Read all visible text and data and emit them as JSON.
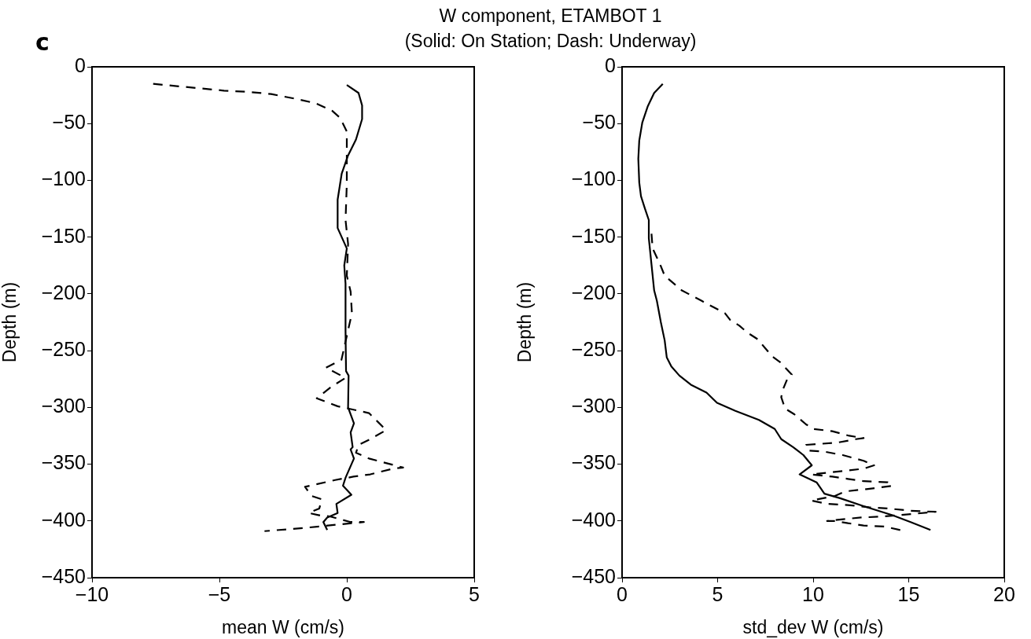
{
  "chart_data": [
    {
      "type": "line",
      "title": "W component, ETAMBOT 1",
      "subtitle": "(Solid: On Station; Dash: Underway)",
      "annotations": [
        "c"
      ],
      "xlabel": "mean W (cm/s)",
      "ylabel": "Depth (m)",
      "xlim": [
        -10,
        5
      ],
      "xticks": [
        -10,
        -5,
        0,
        5
      ],
      "ylim": [
        -450,
        0
      ],
      "yticks": [
        -450,
        -400,
        -350,
        -300,
        -250,
        -200,
        -150,
        -100,
        -50,
        0
      ],
      "grid": false,
      "legend": false,
      "marker": "none",
      "series": [
        {
          "color": "#000000",
          "line_style": "solid",
          "x": [
            0,
            0.46,
            0.6,
            0.6,
            0.36,
            0.05,
            -0.2,
            -0.36,
            -0.36,
            0,
            -0.1,
            -0.05,
            -0.05,
            -0.03,
            0.07,
            0.05,
            0.28,
            0.15,
            0.23,
            0.15,
            0.28,
            -0.05,
            -0.15,
            0.18,
            -0.41,
            -0.36,
            -0.77,
            -0.92,
            -0.77
          ],
          "values": [
            -16,
            -23,
            -34,
            -46,
            -64,
            -78,
            -94,
            -117,
            -142,
            -160,
            -175,
            -191,
            -233,
            -268,
            -272,
            -300,
            -314,
            -322,
            -335,
            -337,
            -345,
            -362,
            -369,
            -377,
            -385,
            -393,
            -397,
            -401,
            -408
          ]
        },
        {
          "color": "#000000",
          "line_style": "dashed",
          "x": [
            -7.6,
            -6.67,
            -5.74,
            -4.82,
            -3.9,
            -2.97,
            -2.05,
            -1.23,
            -0.56,
            -0.26,
            0,
            0,
            0,
            -0.05,
            0.05,
            0,
            0.15,
            0.2,
            -0.21,
            -0.82,
            -0.05,
            -0.62,
            -1.18,
            -0.82,
            -0.36,
            0.05,
            0.87,
            1.23,
            1.54,
            0.92,
            0.46,
            0.36,
            0.87,
            2.21,
            1.8,
            0.92,
            0.26,
            -0.46,
            -1.64,
            -1.39,
            -0.98,
            -1.08,
            -1.49,
            -1.08,
            -0.67,
            0.15,
            0.67,
            -0.26,
            -1.59,
            -3.23
          ],
          "values": [
            -15,
            -17,
            -19,
            -21,
            -22,
            -24,
            -28,
            -32,
            -39,
            -45,
            -57,
            -80,
            -103,
            -135,
            -156,
            -184,
            -198,
            -217,
            -258,
            -265,
            -274,
            -282,
            -292,
            -295,
            -299,
            -301,
            -305,
            -313,
            -320,
            -328,
            -333,
            -340,
            -345,
            -353,
            -354,
            -359,
            -361,
            -364,
            -370,
            -378,
            -381,
            -389,
            -393,
            -395,
            -396,
            -401,
            -401,
            -403,
            -406,
            -409
          ]
        }
      ]
    },
    {
      "type": "line",
      "xlabel": "std_dev W (cm/s)",
      "ylabel": "Depth (m)",
      "xlim": [
        0,
        20
      ],
      "xticks": [
        0,
        5,
        10,
        15,
        20
      ],
      "ylim": [
        -450,
        0
      ],
      "yticks": [
        -450,
        -400,
        -350,
        -300,
        -250,
        -200,
        -150,
        -100,
        -50,
        0
      ],
      "grid": false,
      "legend": false,
      "marker": "none",
      "series": [
        {
          "color": "#000000",
          "line_style": "solid",
          "x": [
            2.13,
            1.68,
            1.34,
            1.06,
            0.9,
            0.85,
            0.9,
            0.99,
            1.2,
            1.4,
            1.4,
            1.54,
            1.68,
            1.82,
            2.03,
            2.23,
            2.34,
            2.58,
            3.0,
            3.6,
            4.42,
            4.97,
            5.93,
            7.16,
            7.99,
            8.33,
            8.95,
            9.49,
            9.93,
            9.29,
            10.18,
            10.59,
            11.41,
            12.64,
            14.15,
            15.1,
            16.14
          ],
          "values": [
            -15,
            -23,
            -35,
            -49,
            -65,
            -81,
            -102,
            -114,
            -125,
            -135,
            -151,
            -174,
            -197,
            -206,
            -225,
            -241,
            -256,
            -264,
            -272,
            -280,
            -287,
            -296,
            -303,
            -311,
            -319,
            -328,
            -335,
            -342,
            -351,
            -359,
            -366,
            -376,
            -380,
            -387,
            -395,
            -401,
            -408
          ]
        },
        {
          "color": "#000000",
          "line_style": "dashed",
          "x": [
            1.54,
            1.6,
            1.99,
            2.23,
            3.13,
            4.15,
            4.7,
            5.38,
            5.66,
            6.14,
            6.55,
            7.1,
            7.5,
            7.85,
            8.26,
            8.88,
            8.67,
            8.4,
            8.33,
            8.53,
            9.01,
            9.63,
            10.04,
            11,
            11.89,
            12.64,
            12.23,
            11.27,
            9.63,
            9.77,
            10.59,
            11.55,
            12.64,
            13.19,
            12.64,
            11.55,
            9.9,
            11,
            11.82,
            12.64,
            13.9,
            14.15,
            13.74,
            12.78,
            11.68,
            11.14,
            9.9,
            10.73,
            11.82,
            12.92,
            13.88,
            15.1,
            16.41,
            15.1,
            13.74,
            12.5,
            11.27,
            10.73,
            11.14,
            11.82,
            12.64,
            13.74,
            14.56
          ],
          "values": [
            -147,
            -160,
            -174,
            -184,
            -197,
            -206,
            -211,
            -217,
            -223,
            -228,
            -234,
            -240,
            -248,
            -255,
            -260,
            -271,
            -274,
            -285,
            -291,
            -301,
            -306,
            -315,
            -319,
            -321,
            -325,
            -327,
            -328,
            -331,
            -333,
            -338,
            -339,
            -342,
            -347,
            -351,
            -354,
            -356,
            -359,
            -361,
            -363,
            -365,
            -366,
            -369,
            -370,
            -372,
            -374,
            -378,
            -382,
            -385,
            -386,
            -388,
            -389,
            -391,
            -392,
            -394,
            -396,
            -397,
            -399,
            -400,
            -400,
            -402,
            -404,
            -405,
            -408
          ]
        }
      ]
    }
  ]
}
